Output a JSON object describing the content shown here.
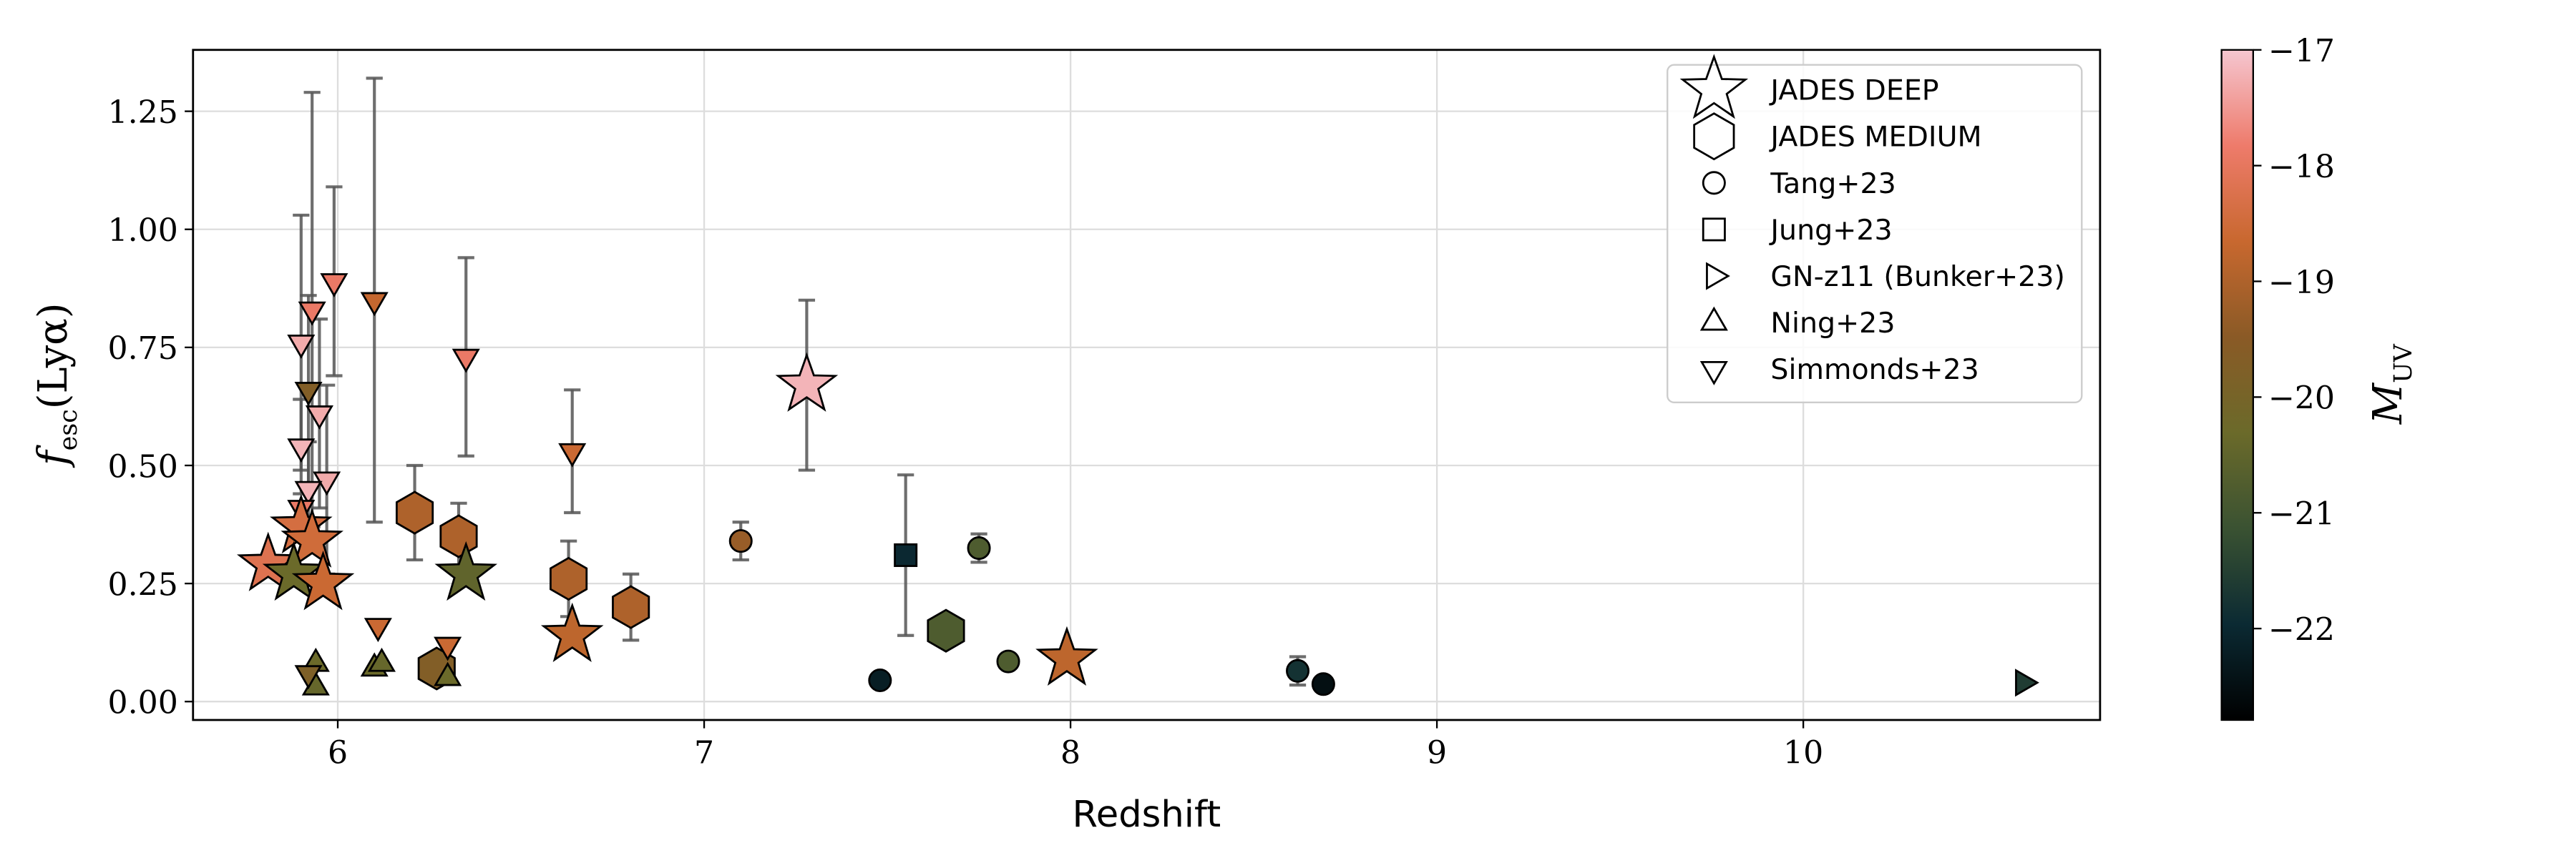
{
  "chart_data": {
    "type": "scatter",
    "xlabel": "Redshift",
    "ylabel": {
      "main": "f",
      "sub": "esc",
      "rest": "(Lyα)"
    },
    "xlim": [
      5.605,
      10.81
    ],
    "ylim": [
      -0.039,
      1.38
    ],
    "xticks": [
      6,
      7,
      8,
      9,
      10
    ],
    "yticks": [
      {
        "value": 0,
        "label": "0.00"
      },
      {
        "value": 0.25,
        "label": "0.25"
      },
      {
        "value": 0.5,
        "label": "0.50"
      },
      {
        "value": 0.75,
        "label": "0.75"
      },
      {
        "value": 1,
        "label": "1.00"
      },
      {
        "value": 1.25,
        "label": "1.25"
      }
    ],
    "grid": true,
    "legend": "upper right",
    "colorbar": {
      "label": {
        "main": "M",
        "sub": "UV"
      },
      "lim": [
        -22.79,
        -17
      ],
      "ticks": [
        {
          "value": -17,
          "label": "−17"
        },
        {
          "value": -18,
          "label": "−18"
        },
        {
          "value": -19,
          "label": "−19"
        },
        {
          "value": -20,
          "label": "−20"
        },
        {
          "value": -21,
          "label": "−21"
        },
        {
          "value": -22,
          "label": "−22"
        }
      ],
      "colormap": [
        "#000000",
        "#0b2a33",
        "#3a5232",
        "#6b6a2a",
        "#8a5a26",
        "#c8682f",
        "#ee7b6b",
        "#f5c6d0"
      ]
    },
    "series": [
      {
        "name": "JADES DEEP",
        "marker": "star",
        "x": [
          5.81,
          5.9,
          5.93,
          5.88,
          5.96,
          6.35,
          6.64,
          7.28,
          7.99
        ],
        "y": [
          0.29,
          0.37,
          0.34,
          0.27,
          0.25,
          0.27,
          0.14,
          0.67,
          0.09
        ],
        "muv": [
          -18.2,
          -18.4,
          -18.5,
          -20.3,
          -18.6,
          -20.5,
          -18.8,
          -17.2,
          -18.8
        ],
        "yerr": [
          null,
          null,
          null,
          null,
          null,
          null,
          null,
          0.18,
          null
        ]
      },
      {
        "name": "JADES MEDIUM",
        "marker": "hexagon",
        "x": [
          6.21,
          6.33,
          6.63,
          6.8,
          6.27,
          7.66
        ],
        "y": [
          0.4,
          0.35,
          0.26,
          0.2,
          0.07,
          0.15
        ],
        "muv": [
          -19.0,
          -19.0,
          -19.0,
          -19.0,
          -19.7,
          -20.8
        ],
        "yerr": [
          0.1,
          0.07,
          0.08,
          0.07,
          null,
          null
        ]
      },
      {
        "name": "Tang+23",
        "marker": "circle",
        "x": [
          7.1,
          7.48,
          7.75,
          7.83,
          8.62,
          8.69
        ],
        "y": [
          0.34,
          0.045,
          0.325,
          0.085,
          0.065,
          0.037
        ],
        "muv": [
          -19.3,
          -22.2,
          -20.8,
          -20.8,
          -21.8,
          -22.5
        ],
        "yerr": [
          0.04,
          null,
          0.03,
          null,
          0.03,
          null
        ]
      },
      {
        "name": "Jung+23",
        "marker": "square",
        "x": [
          7.55
        ],
        "y": [
          0.31
        ],
        "muv": [
          -22.0
        ],
        "yerr": [
          0.17
        ]
      },
      {
        "name": "GN-z11 (Bunker+23)",
        "marker": "triangle-right",
        "x": [
          10.6
        ],
        "y": [
          0.04
        ],
        "muv": [
          -21.6
        ],
        "yerr": [
          null
        ]
      },
      {
        "name": "Ning+23",
        "marker": "triangle-up",
        "x": [
          5.94,
          5.94,
          6.1,
          6.12,
          6.3
        ],
        "y": [
          0.08,
          0.03,
          0.07,
          0.08,
          0.05
        ],
        "muv": [
          -20.3,
          -20.4,
          -20.3,
          -20.4,
          -20.3
        ],
        "yerr": [
          null,
          null,
          null,
          null,
          null
        ]
      },
      {
        "name": "Simmonds+23",
        "marker": "triangle-down",
        "x": [
          5.9,
          5.93,
          5.99,
          6.1,
          5.92,
          5.95,
          5.9,
          5.97,
          5.92,
          6.35,
          6.64,
          5.9,
          6.11,
          6.3,
          5.92
        ],
        "y": [
          0.76,
          0.83,
          0.89,
          0.85,
          0.66,
          0.61,
          0.54,
          0.47,
          0.45,
          0.73,
          0.53,
          0.41,
          0.16,
          0.12,
          0.06
        ],
        "muv": [
          -17.3,
          -17.9,
          -17.9,
          -18.7,
          -19.7,
          -17.3,
          -17.2,
          -17.3,
          -17.2,
          -17.9,
          -18.6,
          -17.9,
          -18.6,
          -18.6,
          -19.8
        ],
        "yerr": [
          0.27,
          0.46,
          0.2,
          0.47,
          0.2,
          0.2,
          0.1,
          0.2,
          0.1,
          0.21,
          0.13,
          null,
          null,
          null,
          null
        ]
      }
    ]
  }
}
